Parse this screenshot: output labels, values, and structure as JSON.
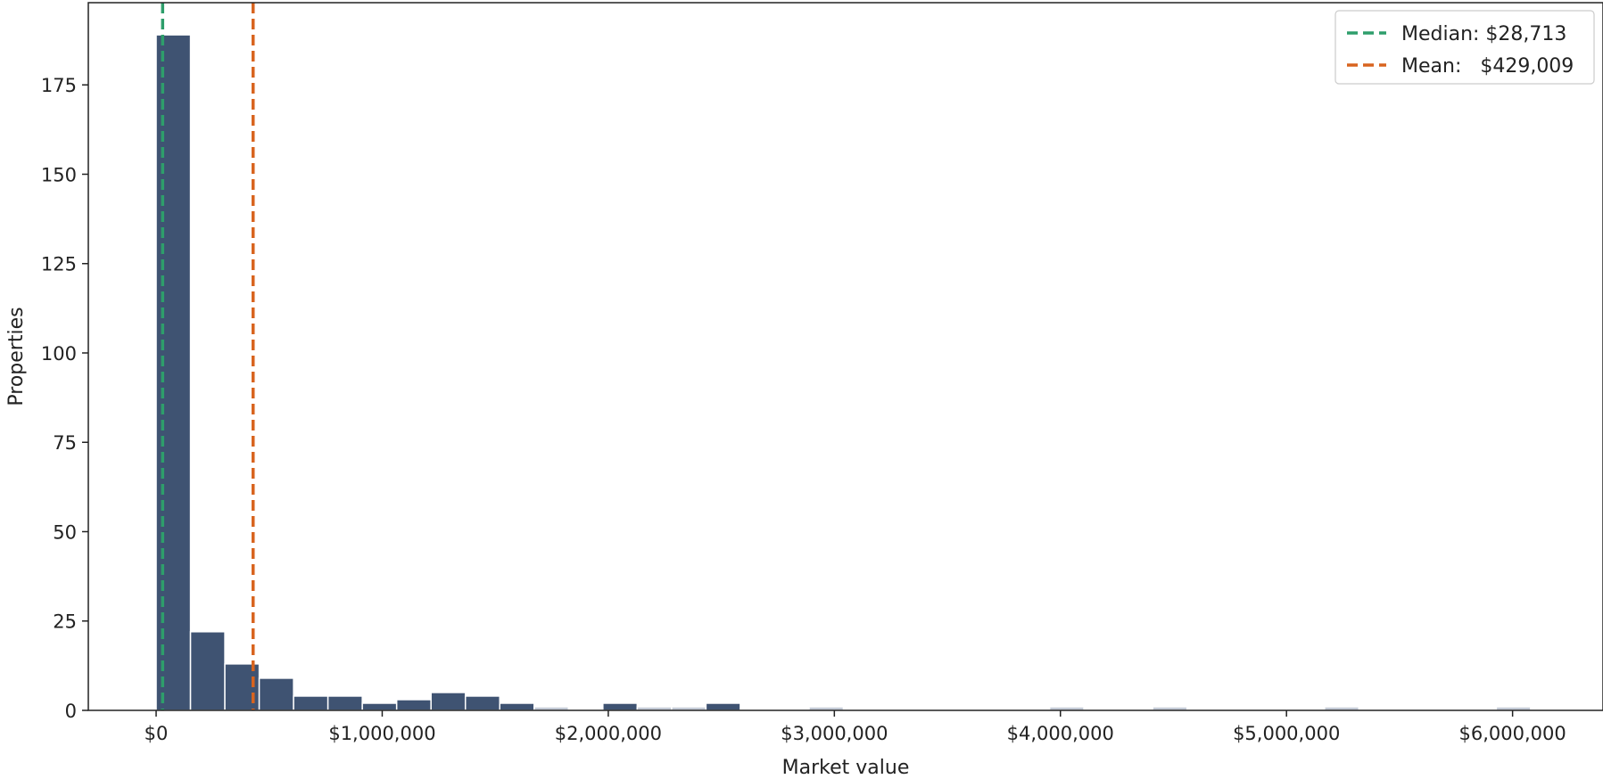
{
  "chart_data": {
    "type": "bar",
    "title": "",
    "xlabel": "Market value",
    "ylabel": "Properties",
    "xlim": [
      -300000,
      6400000
    ],
    "ylim": [
      0,
      198
    ],
    "x_ticks": [
      0,
      1000000,
      2000000,
      3000000,
      4000000,
      5000000,
      6000000
    ],
    "x_tick_labels": [
      "$0",
      "$1,000,000",
      "$2,000,000",
      "$3,000,000",
      "$4,000,000",
      "$5,000,000",
      "$6,000,000"
    ],
    "y_ticks": [
      0,
      25,
      50,
      75,
      100,
      125,
      150,
      175
    ],
    "y_tick_labels": [
      "0",
      "25",
      "50",
      "75",
      "100",
      "125",
      "150",
      "175"
    ],
    "bin_start": 0,
    "bin_width": 152000,
    "values": [
      189,
      22,
      13,
      9,
      4,
      4,
      2,
      3,
      5,
      4,
      2,
      1,
      0,
      2,
      1,
      1,
      2,
      0,
      0,
      1,
      0,
      0,
      0,
      0,
      0,
      0,
      1,
      0,
      0,
      1,
      0,
      0,
      0,
      0,
      1,
      0,
      0,
      0,
      0,
      1
    ],
    "bar_color": "#3f5372",
    "muted_bar_color": "#c3cad6",
    "grid": false,
    "reference_lines": [
      {
        "name": "Median",
        "label": "Median: $28,713",
        "x": 28713,
        "color": "#2e9e6b"
      },
      {
        "name": "Mean",
        "label": "Mean:   $429,009",
        "x": 429009,
        "color": "#d8641f"
      }
    ],
    "legend": {
      "position": "top-right",
      "entries": [
        "Median: $28,713",
        "Mean:   $429,009"
      ]
    }
  }
}
